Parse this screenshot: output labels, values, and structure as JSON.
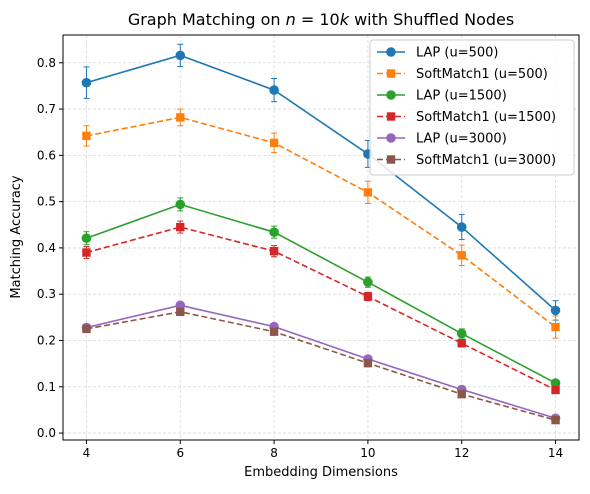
{
  "chart_data": {
    "type": "line",
    "title_prefix": "Graph Matching on ",
    "title_math_italic_n": "n",
    "title_math_rest": " = 10",
    "title_math_italic_k": "k",
    "title_suffix": " with Shuffled Nodes",
    "xlabel": "Embedding Dimensions",
    "ylabel": "Matching Accuracy",
    "x": [
      4,
      6,
      8,
      10,
      12,
      14
    ],
    "xlim": [
      3.5,
      14.5
    ],
    "ylim": [
      -0.015,
      0.86
    ],
    "x_ticks": [
      "4",
      "6",
      "8",
      "10",
      "12",
      "14"
    ],
    "y_ticks": [
      "0.0",
      "0.1",
      "0.2",
      "0.3",
      "0.4",
      "0.5",
      "0.6",
      "0.7",
      "0.8"
    ],
    "grid": true,
    "legend_position": "top-right",
    "series": [
      {
        "name": "LAP (u=500)",
        "color": "#1f77b4",
        "marker": "circle",
        "linestyle": "solid",
        "values": [
          0.757,
          0.816,
          0.741,
          0.603,
          0.445,
          0.265
        ],
        "errors": [
          0.034,
          0.024,
          0.025,
          0.029,
          0.027,
          0.021
        ]
      },
      {
        "name": "SoftMatch1 (u=500)",
        "color": "#ff7f0e",
        "marker": "square",
        "linestyle": "dashed",
        "values": [
          0.642,
          0.682,
          0.627,
          0.52,
          0.384,
          0.229
        ],
        "errors": [
          0.022,
          0.018,
          0.021,
          0.024,
          0.022,
          0.024
        ]
      },
      {
        "name": "LAP (u=1500)",
        "color": "#2ca02c",
        "marker": "circle",
        "linestyle": "solid",
        "values": [
          0.421,
          0.494,
          0.434,
          0.326,
          0.215,
          0.108
        ],
        "errors": [
          0.014,
          0.014,
          0.013,
          0.011,
          0.01,
          0.006
        ]
      },
      {
        "name": "SoftMatch1 (u=1500)",
        "color": "#d62728",
        "marker": "square",
        "linestyle": "dashed",
        "values": [
          0.39,
          0.445,
          0.393,
          0.295,
          0.194,
          0.093
        ],
        "errors": [
          0.013,
          0.013,
          0.012,
          0.009,
          0.008,
          0.006
        ]
      },
      {
        "name": "LAP (u=3000)",
        "color": "#9467bd",
        "marker": "circle",
        "linestyle": "solid",
        "values": [
          0.228,
          0.276,
          0.23,
          0.16,
          0.094,
          0.032
        ],
        "errors": [
          0.006,
          0.006,
          0.005,
          0.005,
          0.004,
          0.003
        ]
      },
      {
        "name": "SoftMatch1 (u=3000)",
        "color": "#8c564b",
        "marker": "square",
        "linestyle": "dashed",
        "values": [
          0.225,
          0.262,
          0.219,
          0.151,
          0.084,
          0.028
        ],
        "errors": [
          0.005,
          0.005,
          0.005,
          0.004,
          0.003,
          0.003
        ]
      }
    ]
  }
}
